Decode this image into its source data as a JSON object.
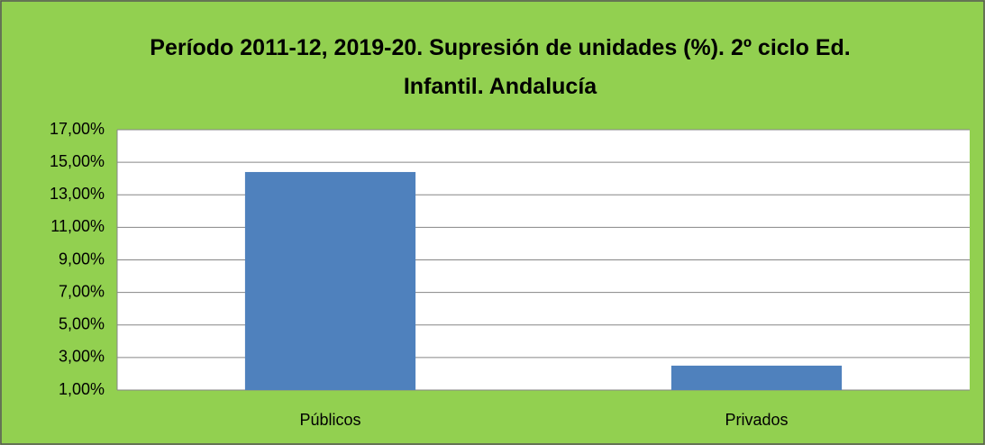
{
  "chart_data": {
    "type": "bar",
    "title": "Período 2011-12, 2019-20. Supresión de unidades (%). 2º ciclo Ed. Infantil. Andalucía",
    "categories": [
      "Públicos",
      "Privados"
    ],
    "values": [
      14.4,
      2.5
    ],
    "color": "#4f81bd",
    "ylim": [
      1,
      17
    ],
    "yticks": [
      {
        "value": 1,
        "label": "1,00%"
      },
      {
        "value": 3,
        "label": "3,00%"
      },
      {
        "value": 5,
        "label": "5,00%"
      },
      {
        "value": 7,
        "label": "7,00%"
      },
      {
        "value": 9,
        "label": "9,00%"
      },
      {
        "value": 11,
        "label": "11,00%"
      },
      {
        "value": 13,
        "label": "13,00%"
      },
      {
        "value": 15,
        "label": "15,00%"
      },
      {
        "value": 17,
        "label": "17,00%"
      }
    ],
    "grid": true
  }
}
